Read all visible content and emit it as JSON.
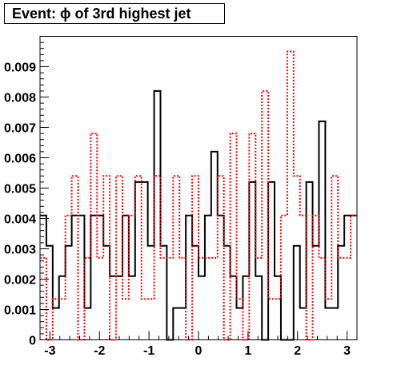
{
  "chart_data": {
    "type": "step",
    "title": "Event: ϕ of 3rd highest jet",
    "xlim": [
      -3.2,
      3.2
    ],
    "ylim": [
      0,
      0.01
    ],
    "x_ticks": [
      -3,
      -2,
      -1,
      0,
      1,
      2,
      3
    ],
    "x_tick_labels": [
      "-3",
      "-2",
      "-1",
      "0",
      "1",
      "2",
      "3"
    ],
    "y_ticks": [
      0,
      0.001,
      0.002,
      0.003,
      0.004,
      0.005,
      0.006,
      0.007,
      0.008,
      0.009
    ],
    "y_tick_labels": [
      "0",
      "0.001",
      "0.002",
      "0.003",
      "0.004",
      "0.005",
      "0.006",
      "0.007",
      "0.008",
      "0.009"
    ],
    "bin_edges_range": [
      -3.2,
      3.2
    ],
    "n_bins": 50,
    "series": [
      {
        "line_style": "solid",
        "color": "#000000",
        "values": [
          0.0041,
          0.0031,
          0.00105,
          0.0021,
          0.0031,
          0.0041,
          0.0041,
          0.00105,
          0.0041,
          0.0041,
          0.0031,
          0.0021,
          0.0021,
          0.0041,
          0.0021,
          0.0052,
          0.0052,
          0.0031,
          0.0082,
          0.0031,
          0.0,
          0.00105,
          0.00105,
          0.0041,
          0.0031,
          0.0021,
          0.0041,
          0.0062,
          0.0041,
          0.0031,
          0.0021,
          0.00105,
          0.0021,
          0.0052,
          0.0021,
          0.0,
          0.0052,
          0.0021,
          0.0,
          0.0,
          0.0031,
          0.00105,
          0.0052,
          0.0031,
          0.0072,
          0.00105,
          0.00105,
          0.0031,
          0.0041,
          0.0041
        ]
      },
      {
        "line_style": "dotted",
        "color": "#ff0000",
        "values": [
          0.0027,
          0.0,
          0.00135,
          0.00135,
          0.0041,
          0.0054,
          0.0,
          0.0027,
          0.0068,
          0.0027,
          0.0054,
          0.0,
          0.0054,
          0.00135,
          0.0041,
          0.0054,
          0.00135,
          0.00135,
          0.0054,
          0.0027,
          0.0027,
          0.0054,
          0.0027,
          0.0,
          0.0054,
          0.0027,
          0.0027,
          0.0027,
          0.0054,
          0.0,
          0.0068,
          0.00135,
          0.0,
          0.0068,
          0.0027,
          0.0082,
          0.00135,
          0.00135,
          0.0041,
          0.0095,
          0.0054,
          0.0041,
          0.0,
          0.0041,
          0.0027,
          0.00135,
          0.0054,
          0.0027,
          0.0027,
          0.0041
        ]
      }
    ]
  }
}
